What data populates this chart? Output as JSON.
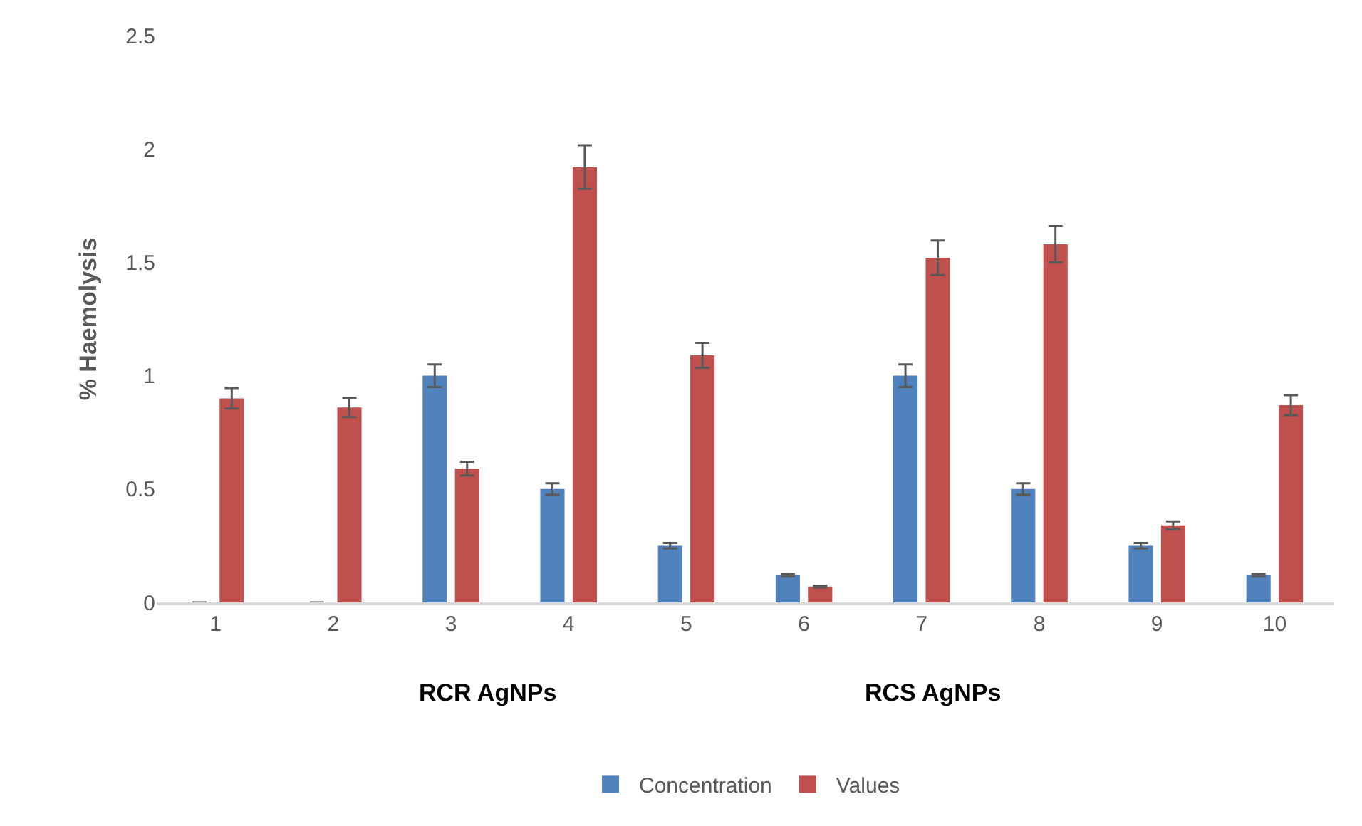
{
  "chart_data": {
    "type": "bar",
    "ylabel": "% Haemolysis",
    "categories": [
      "1",
      "2",
      "3",
      "4",
      "5",
      "6",
      "7",
      "8",
      "9",
      "10"
    ],
    "series": [
      {
        "name": "Concentration",
        "color": "#4f81bd",
        "values": [
          0,
          0,
          1,
          0.5,
          0.25,
          0.12,
          1,
          0.5,
          0.25,
          0.12
        ],
        "errors": [
          0,
          0,
          0.05,
          0.025,
          0.012,
          0.006,
          0.05,
          0.025,
          0.012,
          0.006
        ]
      },
      {
        "name": "Values",
        "color": "#c0504d",
        "values": [
          0.9,
          0.86,
          0.59,
          1.92,
          1.09,
          0.07,
          1.52,
          1.58,
          0.34,
          0.87
        ],
        "errors": [
          0.045,
          0.043,
          0.03,
          0.096,
          0.055,
          0.004,
          0.076,
          0.08,
          0.017,
          0.044
        ]
      }
    ],
    "annotations": [
      "RCR AgNPs",
      "RCS AgNPs"
    ],
    "ylim": [
      0,
      2.5
    ],
    "yticks": [
      0,
      0.5,
      1,
      1.5,
      2,
      2.5
    ],
    "legend": "bottom"
  }
}
